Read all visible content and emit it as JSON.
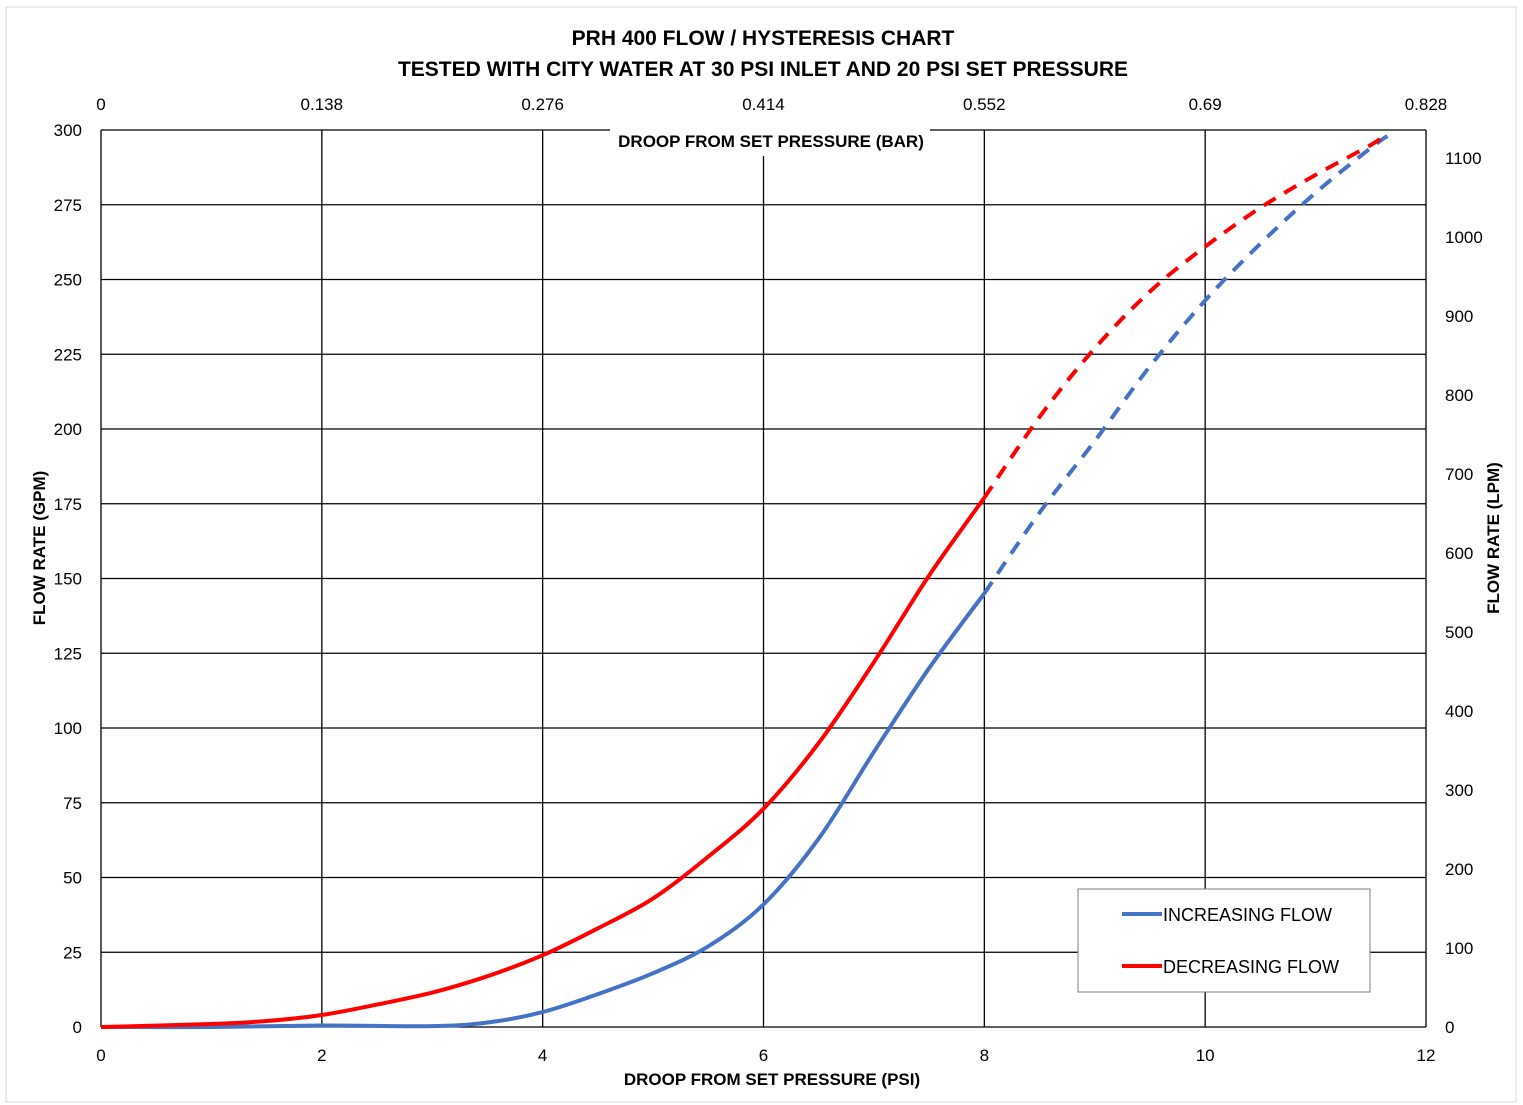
{
  "chart_data": {
    "type": "line",
    "title": "PRH 400 FLOW / HYSTERESIS CHART",
    "subtitle": "TESTED WITH CITY WATER AT 30 PSI INLET AND 20 PSI SET PRESSURE",
    "xlabel": "DROOP FROM SET PRESSURE (PSI)",
    "x2label": "DROOP FROM SET PRESSURE (BAR)",
    "ylabel": "FLOW RATE (GPM)",
    "y2label": "FLOW RATE (LPM)",
    "xlim": [
      0,
      12
    ],
    "ylim": [
      0,
      300
    ],
    "x2lim": [
      0,
      0.828
    ],
    "y2lim": [
      0,
      1135.6
    ],
    "grid": true,
    "legend_position": "bottom-right",
    "x_ticks": [
      "0",
      "2",
      "4",
      "6",
      "8",
      "10",
      "12"
    ],
    "x_tick_values": [
      0,
      2,
      4,
      6,
      8,
      10,
      12
    ],
    "x2_ticks": [
      "0",
      "0.138",
      "0.276",
      "0.414",
      "0.552",
      "0.69",
      "0.828"
    ],
    "x2_tick_values": [
      0,
      0.138,
      0.276,
      0.414,
      0.552,
      0.69,
      0.828
    ],
    "y_ticks": [
      "0",
      "25",
      "50",
      "75",
      "100",
      "125",
      "150",
      "175",
      "200",
      "225",
      "250",
      "275",
      "300"
    ],
    "y_tick_values": [
      0,
      25,
      50,
      75,
      100,
      125,
      150,
      175,
      200,
      225,
      250,
      275,
      300
    ],
    "y2_ticks": [
      "0",
      "100",
      "200",
      "300",
      "400",
      "500",
      "600",
      "700",
      "800",
      "900",
      "1000",
      "1100"
    ],
    "y2_tick_values": [
      0,
      100,
      200,
      300,
      400,
      500,
      600,
      700,
      800,
      900,
      1000,
      1100
    ],
    "series": [
      {
        "name": "INCREASING FLOW",
        "color": "#4472C4",
        "measured": {
          "x": [
            0,
            1,
            2,
            3,
            3.5,
            4,
            4.5,
            5,
            5.5,
            6,
            6.5,
            7,
            7.5,
            8
          ],
          "y": [
            0,
            0,
            0.5,
            0.3,
            1.5,
            5,
            11,
            18,
            27,
            41,
            63,
            92,
            120,
            145
          ]
        },
        "extrapolated": {
          "x": [
            8,
            8.5,
            9,
            9.5,
            10,
            10.5,
            11,
            11.5,
            11.65
          ],
          "y": [
            145,
            172,
            196,
            221,
            243,
            262,
            279,
            294,
            298
          ]
        }
      },
      {
        "name": "DECREASING FLOW",
        "color": "#FF0000",
        "measured": {
          "x": [
            0,
            1,
            1.5,
            2,
            2.5,
            3,
            3.5,
            4,
            4.5,
            5,
            5.5,
            6,
            6.5,
            7,
            7.5,
            8
          ],
          "y": [
            0,
            1,
            2,
            4,
            7.5,
            11.5,
            17,
            24,
            33,
            43,
            57,
            73,
            95,
            122,
            151,
            177
          ]
        },
        "extrapolated": {
          "x": [
            8,
            8.5,
            9,
            9.5,
            10,
            10.5,
            11,
            11.5,
            11.65
          ],
          "y": [
            177,
            204,
            227,
            246,
            261,
            274,
            285,
            295,
            299
          ]
        }
      }
    ]
  }
}
